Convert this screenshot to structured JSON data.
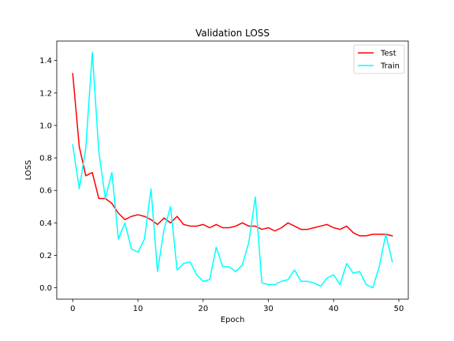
{
  "chart_data": {
    "type": "line",
    "title": "Validation LOSS",
    "xlabel": "Epoch",
    "ylabel": "LOSS",
    "xlim": [
      -2.45,
      51.45
    ],
    "ylim": [
      -0.07,
      1.52
    ],
    "xticks": [
      0,
      10,
      20,
      30,
      40,
      50
    ],
    "yticks": [
      0.0,
      0.2,
      0.4,
      0.6,
      0.8,
      1.0,
      1.2,
      1.4
    ],
    "xtick_labels": [
      "0",
      "10",
      "20",
      "30",
      "40",
      "50"
    ],
    "ytick_labels": [
      "0.0",
      "0.2",
      "0.4",
      "0.6",
      "0.8",
      "1.0",
      "1.2",
      "1.4"
    ],
    "grid": false,
    "legend_position": "top-right",
    "x": [
      0,
      1,
      2,
      3,
      4,
      5,
      6,
      7,
      8,
      9,
      10,
      11,
      12,
      13,
      14,
      15,
      16,
      17,
      18,
      19,
      20,
      21,
      22,
      23,
      24,
      25,
      26,
      27,
      28,
      29,
      30,
      31,
      32,
      33,
      34,
      35,
      36,
      37,
      38,
      39,
      40,
      41,
      42,
      43,
      44,
      45,
      46,
      47,
      48,
      49
    ],
    "series": [
      {
        "name": "Test",
        "color": "#ff0000",
        "values": [
          1.32,
          0.87,
          0.69,
          0.71,
          0.55,
          0.55,
          0.52,
          0.46,
          0.42,
          0.44,
          0.45,
          0.44,
          0.42,
          0.39,
          0.43,
          0.4,
          0.44,
          0.39,
          0.38,
          0.38,
          0.39,
          0.37,
          0.39,
          0.37,
          0.37,
          0.38,
          0.4,
          0.38,
          0.38,
          0.36,
          0.37,
          0.35,
          0.37,
          0.4,
          0.38,
          0.36,
          0.36,
          0.37,
          0.38,
          0.39,
          0.37,
          0.36,
          0.38,
          0.34,
          0.32,
          0.32,
          0.33,
          0.33,
          0.33,
          0.32
        ]
      },
      {
        "name": "Train",
        "color": "#00ffff",
        "values": [
          0.88,
          0.61,
          0.86,
          1.45,
          0.84,
          0.55,
          0.71,
          0.3,
          0.4,
          0.24,
          0.22,
          0.3,
          0.61,
          0.1,
          0.36,
          0.5,
          0.11,
          0.15,
          0.16,
          0.08,
          0.04,
          0.05,
          0.25,
          0.13,
          0.13,
          0.1,
          0.14,
          0.28,
          0.56,
          0.03,
          0.02,
          0.02,
          0.04,
          0.05,
          0.11,
          0.04,
          0.04,
          0.03,
          0.01,
          0.06,
          0.08,
          0.02,
          0.15,
          0.09,
          0.1,
          0.02,
          0.0,
          0.13,
          0.33,
          0.16
        ]
      }
    ]
  }
}
